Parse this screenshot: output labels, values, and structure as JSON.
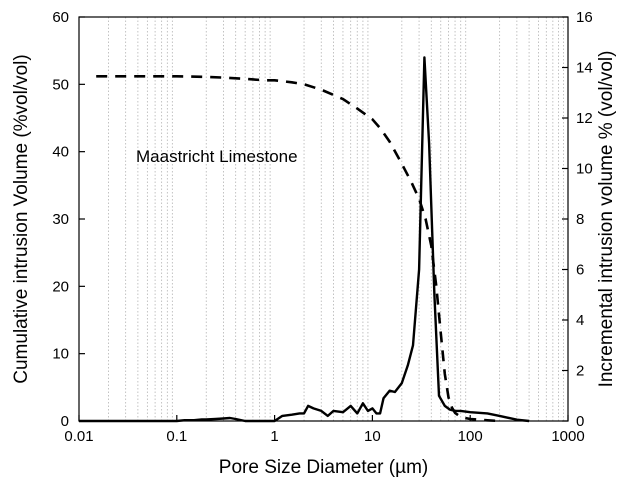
{
  "chart_data": {
    "type": "line",
    "xlabel": "Pore Size Diameter (µm)",
    "ylabel_left": "Cumulative intrusion Volume (%vol/vol)",
    "ylabel_right": "Incremental intrusion volume % (vol/vol)",
    "annotation": "Maastricht Limestone",
    "x_scale": "log",
    "xlim": [
      0.01,
      1000
    ],
    "ylim_left": [
      0,
      60
    ],
    "ylim_right": [
      0,
      16
    ],
    "x_ticks": [
      "0.01",
      "0.1",
      "1",
      "10",
      "100",
      "1000"
    ],
    "y_left_ticks": [
      "0",
      "10",
      "20",
      "30",
      "40",
      "50",
      "60"
    ],
    "y_right_ticks": [
      "0",
      "2",
      "4",
      "6",
      "8",
      "10",
      "12",
      "14",
      "16"
    ],
    "grid": "vertical minor, dotted",
    "series": [
      {
        "axis": "left",
        "style": "dashed",
        "x": [
          0.015,
          0.03,
          0.1,
          0.2,
          0.3,
          0.5,
          0.8,
          1.0,
          1.5,
          2,
          3,
          5,
          7,
          10,
          12,
          15,
          20,
          25,
          30,
          35,
          40,
          45,
          50,
          55,
          60,
          65,
          70,
          80,
          100,
          150,
          200
        ],
        "y": [
          51.2,
          51.2,
          51.2,
          51.1,
          51.0,
          50.8,
          50.6,
          50.6,
          50.3,
          50.0,
          49.2,
          47.8,
          46.4,
          44.8,
          43.5,
          41.5,
          38.2,
          35.5,
          33.0,
          30.0,
          26.0,
          20.0,
          13.0,
          7.0,
          3.5,
          2.0,
          1.2,
          0.6,
          0.3,
          0.1,
          0.0
        ]
      },
      {
        "axis": "right",
        "style": "solid",
        "x": [
          0.01,
          0.1,
          0.12,
          0.15,
          0.18,
          0.2,
          0.25,
          0.3,
          0.35,
          0.4,
          0.5,
          0.7,
          1.0,
          1.2,
          1.5,
          1.8,
          2.0,
          2.2,
          2.5,
          3.0,
          3.5,
          4.0,
          5.0,
          6.0,
          7.0,
          8.0,
          9.0,
          10,
          11,
          12,
          13,
          15,
          17,
          20,
          23,
          26,
          30,
          34,
          38,
          43,
          48,
          55,
          62,
          70,
          80,
          100,
          150,
          200,
          300,
          400
        ],
        "y": [
          0.0,
          0.0,
          0.03,
          0.03,
          0.06,
          0.06,
          0.08,
          0.1,
          0.12,
          0.08,
          0.0,
          0.0,
          0.0,
          0.2,
          0.25,
          0.3,
          0.3,
          0.6,
          0.5,
          0.4,
          0.2,
          0.4,
          0.35,
          0.6,
          0.3,
          0.7,
          0.4,
          0.5,
          0.3,
          0.3,
          0.9,
          1.2,
          1.15,
          1.5,
          2.2,
          3.0,
          6.0,
          14.4,
          11.0,
          5.0,
          1.0,
          0.6,
          0.45,
          0.4,
          0.4,
          0.35,
          0.3,
          0.2,
          0.05,
          0.0
        ]
      }
    ]
  }
}
